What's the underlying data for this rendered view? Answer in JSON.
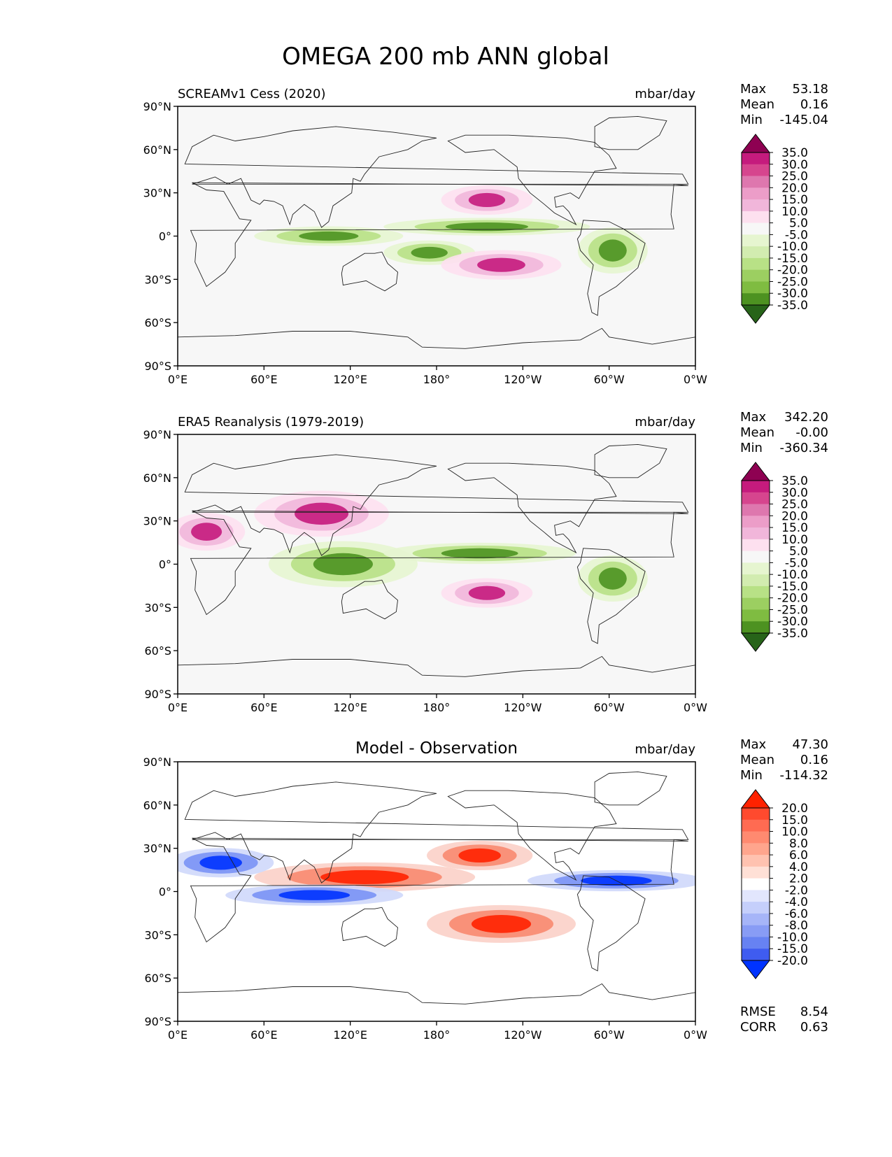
{
  "figure_title": "OMEGA 200 mb ANN global",
  "colors": {
    "pos3": "#8e0152",
    "pos2": "#c51b7d",
    "pos1": "#de77ae",
    "pos0": "#f1b6da",
    "posL": "#fde0ef",
    "neutral": "#f7f7f7",
    "negL": "#e6f5d0",
    "neg0": "#b8e186",
    "neg1": "#7fbc41",
    "neg2": "#4d9221",
    "neg3": "#276419",
    "diff_red": "#ff2200",
    "diff_blue": "#0033ff",
    "coast": "#222222"
  },
  "chart_data": [
    {
      "type": "heatmap",
      "title": "SCREAMv1 Cess (2020)",
      "units": "mbar/day",
      "stats": {
        "max_label": "Max",
        "max": "53.18",
        "mean_label": "Mean",
        "mean": "0.16",
        "min_label": "Min",
        "min": "-145.04"
      },
      "x_ticks": [
        "0°E",
        "60°E",
        "120°E",
        "180°",
        "120°W",
        "60°W",
        "0°W"
      ],
      "y_ticks": [
        "90°N",
        "60°N",
        "30°N",
        "0°",
        "30°S",
        "60°S",
        "90°S"
      ],
      "xlim": [
        0,
        360
      ],
      "ylim": [
        -90,
        90
      ],
      "colorbar": {
        "palette": "PiYG",
        "extend": "both",
        "levels": [
          "35.0",
          "30.0",
          "25.0",
          "20.0",
          "15.0",
          "10.0",
          "5.0",
          "-5.0",
          "-10.0",
          "-15.0",
          "-20.0",
          "-25.0",
          "-30.0",
          "-35.0"
        ]
      },
      "features": [
        {
          "kind": "neg",
          "lon": [
            60,
            150
          ],
          "lat": [
            -2,
            2
          ]
        },
        {
          "kind": "neg",
          "lon": [
            150,
            280
          ],
          "lat": [
            5,
            8
          ]
        },
        {
          "kind": "neg",
          "lon": [
            150,
            200
          ],
          "lat": [
            -15,
            -8
          ]
        },
        {
          "kind": "neg",
          "lon": [
            285,
            320
          ],
          "lat": [
            -20,
            0
          ]
        },
        {
          "kind": "pos",
          "lon": [
            190,
            260
          ],
          "lat": [
            -25,
            -15
          ]
        },
        {
          "kind": "pos",
          "lon": [
            190,
            240
          ],
          "lat": [
            20,
            30
          ]
        }
      ]
    },
    {
      "type": "heatmap",
      "title": "ERA5 Reanalysis (1979-2019)",
      "units": "mbar/day",
      "stats": {
        "max_label": "Max",
        "max": "342.20",
        "mean_label": "Mean",
        "mean": "-0.00",
        "min_label": "Min",
        "min": "-360.34"
      },
      "x_ticks": [
        "0°E",
        "60°E",
        "120°E",
        "180°",
        "120°W",
        "60°W",
        "0°W"
      ],
      "y_ticks": [
        "90°N",
        "60°N",
        "30°N",
        "0°",
        "30°S",
        "60°S",
        "90°S"
      ],
      "xlim": [
        0,
        360
      ],
      "ylim": [
        -90,
        90
      ],
      "colorbar": {
        "palette": "PiYG",
        "extend": "both",
        "levels": [
          "35.0",
          "30.0",
          "25.0",
          "20.0",
          "15.0",
          "10.0",
          "5.0",
          "-5.0",
          "-10.0",
          "-15.0",
          "-20.0",
          "-25.0",
          "-30.0",
          "-35.0"
        ]
      },
      "features": [
        {
          "kind": "neg",
          "lon": [
            70,
            160
          ],
          "lat": [
            -10,
            10
          ]
        },
        {
          "kind": "neg",
          "lon": [
            150,
            270
          ],
          "lat": [
            5,
            10
          ]
        },
        {
          "kind": "neg",
          "lon": [
            285,
            320
          ],
          "lat": [
            -20,
            0
          ]
        },
        {
          "kind": "pos",
          "lon": [
            60,
            140
          ],
          "lat": [
            25,
            45
          ]
        },
        {
          "kind": "pos",
          "lon": [
            0,
            40
          ],
          "lat": [
            15,
            30
          ]
        },
        {
          "kind": "pos",
          "lon": [
            190,
            240
          ],
          "lat": [
            -25,
            -15
          ]
        }
      ]
    },
    {
      "type": "heatmap",
      "title": "Model - Observation",
      "units": "mbar/day",
      "stats": {
        "max_label": "Max",
        "max": "47.30",
        "mean_label": "Mean",
        "mean": "0.16",
        "min_label": "Min",
        "min": "-114.32"
      },
      "extra_stats": {
        "rmse_label": "RMSE",
        "rmse": "8.54",
        "corr_label": "CORR",
        "corr": "0.63"
      },
      "x_ticks": [
        "0°E",
        "60°E",
        "120°E",
        "180°",
        "120°W",
        "60°W",
        "0°W"
      ],
      "y_ticks": [
        "90°N",
        "60°N",
        "30°N",
        "0°",
        "30°S",
        "60°S",
        "90°S"
      ],
      "xlim": [
        0,
        360
      ],
      "ylim": [
        -90,
        90
      ],
      "colorbar": {
        "palette": "bwr",
        "extend": "both",
        "levels": [
          "20.0",
          "15.0",
          "10.0",
          "8.0",
          "6.0",
          "4.0",
          "2.0",
          "-2.0",
          "-4.0",
          "-6.0",
          "-8.0",
          "-10.0",
          "-15.0",
          "-20.0"
        ]
      },
      "features": [
        {
          "kind": "pos",
          "lon": [
            60,
            200
          ],
          "lat": [
            5,
            15
          ]
        },
        {
          "kind": "pos",
          "lon": [
            180,
            270
          ],
          "lat": [
            -30,
            -15
          ]
        },
        {
          "kind": "pos",
          "lon": [
            180,
            240
          ],
          "lat": [
            20,
            30
          ]
        },
        {
          "kind": "neg",
          "lon": [
            40,
            150
          ],
          "lat": [
            -5,
            0
          ]
        },
        {
          "kind": "neg",
          "lon": [
            250,
            360
          ],
          "lat": [
            5,
            10
          ]
        },
        {
          "kind": "neg",
          "lon": [
            0,
            60
          ],
          "lat": [
            15,
            25
          ]
        }
      ]
    }
  ]
}
